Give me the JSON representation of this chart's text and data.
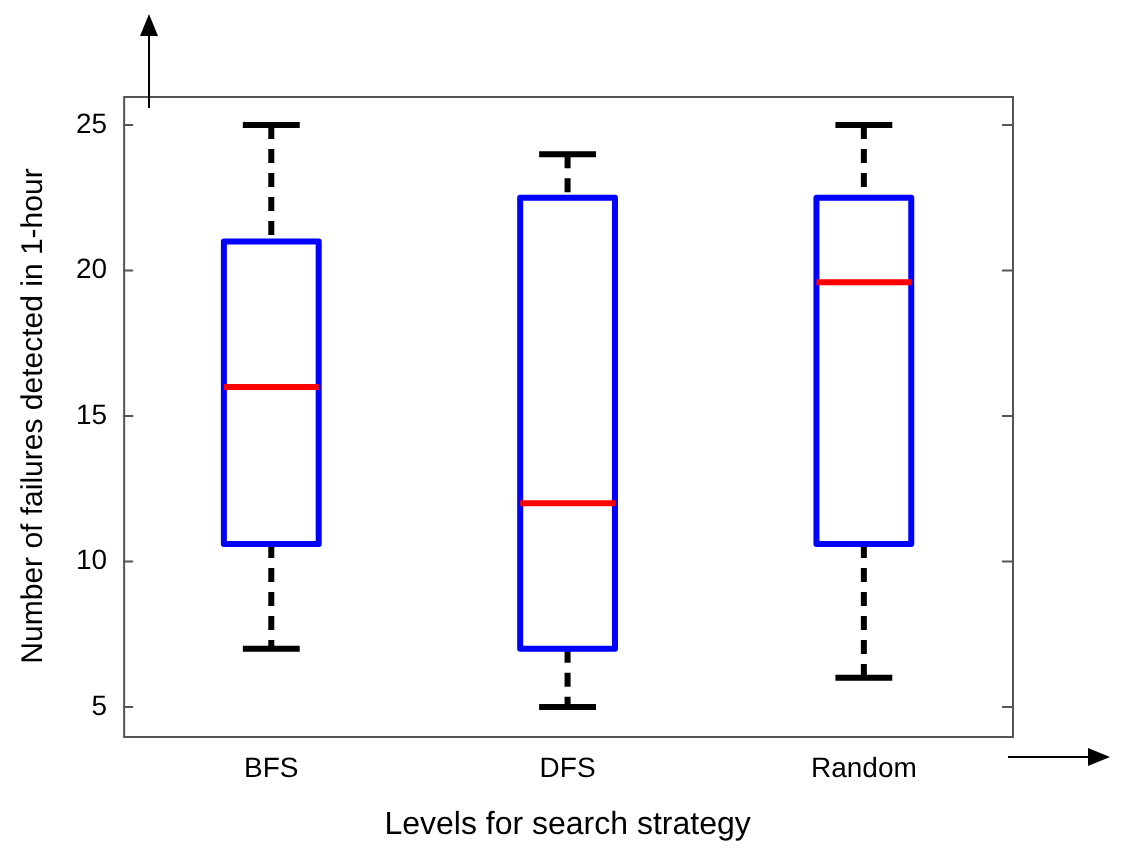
{
  "chart_data": {
    "type": "box",
    "xlabel": "Levels for search strategy",
    "ylabel": "Number of failures detected in 1-hour",
    "categories": [
      "BFS",
      "DFS",
      "Random"
    ],
    "color": "#0000ff",
    "boxes": [
      {
        "low": 7,
        "q1": 10.6,
        "median": 16,
        "q3": 21,
        "high": 25
      },
      {
        "low": 5,
        "q1": 7,
        "median": 12,
        "q3": 22.5,
        "high": 24
      },
      {
        "low": 6,
        "q1": 10.6,
        "median": 19.6,
        "q3": 22.5,
        "high": 25
      }
    ],
    "ylim": [
      4,
      26
    ],
    "yticks": [
      5,
      10,
      15,
      20,
      25
    ],
    "grid": false,
    "legend": false
  }
}
